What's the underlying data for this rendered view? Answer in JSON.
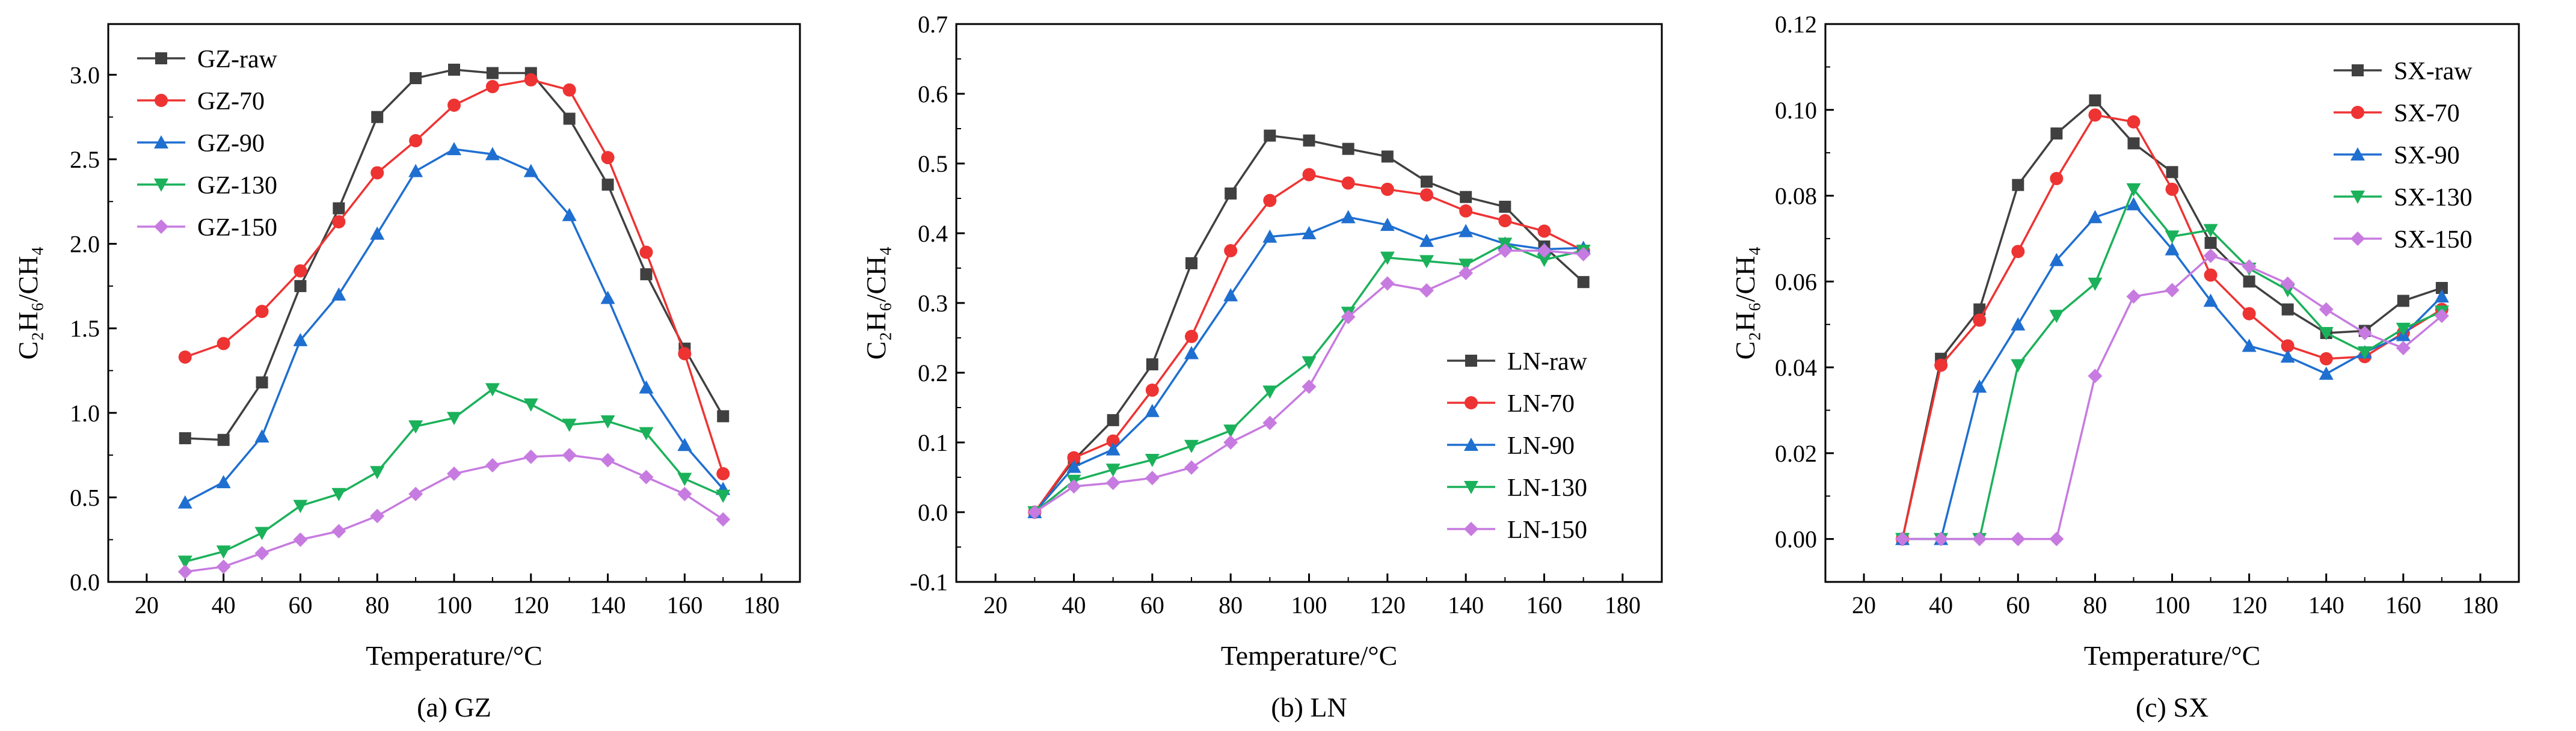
{
  "chart_data": [
    {
      "type": "line",
      "caption": "(a) GZ",
      "xlabel": "Temperature/°C",
      "ylabel": "C₂H₆/CH₄",
      "xlim": [
        10,
        190
      ],
      "ylim": [
        0,
        3.3
      ],
      "xticks": [
        20,
        40,
        60,
        80,
        100,
        120,
        140,
        160,
        180
      ],
      "yticks": [
        0.0,
        0.5,
        1.0,
        1.5,
        2.0,
        2.5,
        3.0
      ],
      "ytick_labels": [
        "0.0",
        "0.5",
        "1.0",
        "1.5",
        "2.0",
        "2.5",
        "3.0"
      ],
      "legend": "top-left",
      "x": [
        30,
        40,
        50,
        60,
        70,
        80,
        90,
        100,
        110,
        120,
        130,
        140,
        150,
        160,
        170
      ],
      "series": [
        {
          "name": "GZ-raw",
          "color": "#404040",
          "marker": "square",
          "values": [
            0.85,
            0.84,
            1.18,
            1.75,
            2.21,
            2.75,
            2.98,
            3.03,
            3.01,
            3.01,
            2.74,
            2.35,
            1.82,
            1.38,
            0.98
          ]
        },
        {
          "name": "GZ-70",
          "color": "#ee3333",
          "marker": "circle",
          "values": [
            1.33,
            1.41,
            1.6,
            1.84,
            2.13,
            2.42,
            2.61,
            2.82,
            2.93,
            2.97,
            2.91,
            2.51,
            1.95,
            1.35,
            0.64
          ]
        },
        {
          "name": "GZ-90",
          "color": "#1f6fd0",
          "marker": "triangle-up",
          "values": [
            0.47,
            0.59,
            0.86,
            1.43,
            1.7,
            2.06,
            2.43,
            2.56,
            2.53,
            2.43,
            2.17,
            1.68,
            1.15,
            0.81,
            0.55
          ]
        },
        {
          "name": "GZ-130",
          "color": "#1bb15a",
          "marker": "triangle-down",
          "values": [
            0.12,
            0.18,
            0.29,
            0.45,
            0.52,
            0.65,
            0.92,
            0.97,
            1.14,
            1.05,
            0.93,
            0.95,
            0.88,
            0.61,
            0.51
          ]
        },
        {
          "name": "GZ-150",
          "color": "#c77be0",
          "marker": "diamond",
          "values": [
            0.06,
            0.09,
            0.17,
            0.25,
            0.3,
            0.39,
            0.52,
            0.64,
            0.69,
            0.74,
            0.75,
            0.72,
            0.62,
            0.52,
            0.37
          ]
        }
      ]
    },
    {
      "type": "line",
      "caption": "(b) LN",
      "xlabel": "Temperature/°C",
      "ylabel": "C₂H₆/CH₄",
      "xlim": [
        10,
        190
      ],
      "ylim": [
        -0.1,
        0.7
      ],
      "xticks": [
        20,
        40,
        60,
        80,
        100,
        120,
        140,
        160,
        180
      ],
      "yticks": [
        -0.1,
        0.0,
        0.1,
        0.2,
        0.3,
        0.4,
        0.5,
        0.6,
        0.7
      ],
      "ytick_labels": [
        "-0.1",
        "0.0",
        "0.1",
        "0.2",
        "0.3",
        "0.4",
        "0.5",
        "0.6",
        "0.7"
      ],
      "legend": "bottom-right",
      "x": [
        30,
        40,
        50,
        60,
        70,
        80,
        90,
        100,
        110,
        120,
        130,
        140,
        150,
        160,
        170
      ],
      "series": [
        {
          "name": "LN-raw",
          "color": "#404040",
          "marker": "square",
          "values": [
            0.0,
            0.075,
            0.132,
            0.212,
            0.357,
            0.457,
            0.54,
            0.533,
            0.521,
            0.51,
            0.474,
            0.452,
            0.438,
            0.381,
            0.33
          ]
        },
        {
          "name": "LN-70",
          "color": "#ee3333",
          "marker": "circle",
          "values": [
            0.0,
            0.078,
            0.102,
            0.175,
            0.252,
            0.375,
            0.447,
            0.484,
            0.472,
            0.463,
            0.455,
            0.432,
            0.418,
            0.403,
            0.375
          ]
        },
        {
          "name": "LN-90",
          "color": "#1f6fd0",
          "marker": "triangle-up",
          "values": [
            0.0,
            0.065,
            0.09,
            0.145,
            0.228,
            0.311,
            0.395,
            0.4,
            0.423,
            0.412,
            0.389,
            0.403,
            0.385,
            0.377,
            0.379
          ]
        },
        {
          "name": "LN-130",
          "color": "#1bb15a",
          "marker": "triangle-down",
          "values": [
            0.0,
            0.045,
            0.061,
            0.075,
            0.095,
            0.117,
            0.173,
            0.215,
            0.286,
            0.365,
            0.36,
            0.355,
            0.385,
            0.362,
            0.375
          ]
        },
        {
          "name": "LN-150",
          "color": "#c77be0",
          "marker": "diamond",
          "values": [
            0.0,
            0.037,
            0.042,
            0.049,
            0.064,
            0.1,
            0.128,
            0.18,
            0.28,
            0.328,
            0.318,
            0.343,
            0.375,
            0.375,
            0.37
          ]
        }
      ]
    },
    {
      "type": "line",
      "caption": "(c) SX",
      "xlabel": "Temperature/°C",
      "ylabel": "C₂H₆/CH₄",
      "xlim": [
        10,
        190
      ],
      "ylim": [
        -0.01,
        0.12
      ],
      "xticks": [
        20,
        40,
        60,
        80,
        100,
        120,
        140,
        160,
        180
      ],
      "yticks": [
        0.0,
        0.02,
        0.04,
        0.06,
        0.08,
        0.1,
        0.12
      ],
      "ytick_labels": [
        "0.00",
        "0.02",
        "0.04",
        "0.06",
        "0.08",
        "0.10",
        "0.12"
      ],
      "legend": "top-right",
      "x": [
        30,
        40,
        50,
        60,
        70,
        80,
        90,
        100,
        110,
        120,
        130,
        140,
        150,
        160,
        170
      ],
      "series": [
        {
          "name": "SX-raw",
          "color": "#404040",
          "marker": "square",
          "values": [
            0.0,
            0.042,
            0.0535,
            0.0825,
            0.0945,
            0.1022,
            0.0922,
            0.0855,
            0.069,
            0.06,
            0.0535,
            0.048,
            0.0485,
            0.0555,
            0.0585
          ]
        },
        {
          "name": "SX-70",
          "color": "#ee3333",
          "marker": "circle",
          "values": [
            0.0,
            0.0405,
            0.051,
            0.067,
            0.084,
            0.0988,
            0.0972,
            0.0815,
            0.0615,
            0.0525,
            0.045,
            0.042,
            0.0425,
            0.048,
            0.0535
          ]
        },
        {
          "name": "SX-90",
          "color": "#1f6fd0",
          "marker": "triangle-up",
          "values": [
            0.0,
            0.0,
            0.0355,
            0.05,
            0.065,
            0.075,
            0.078,
            0.0675,
            0.0555,
            0.045,
            0.0425,
            0.0385,
            0.0435,
            0.0475,
            0.0565
          ]
        },
        {
          "name": "SX-130",
          "color": "#1bb15a",
          "marker": "triangle-down",
          "values": [
            0.0,
            0.0,
            0.0,
            0.0405,
            0.052,
            0.0595,
            0.0815,
            0.0705,
            0.072,
            0.063,
            0.058,
            0.048,
            0.0435,
            0.049,
            0.053
          ]
        },
        {
          "name": "SX-150",
          "color": "#c77be0",
          "marker": "diamond",
          "values": [
            0.0,
            0.0,
            0.0,
            0.0,
            0.0,
            0.038,
            0.0565,
            0.058,
            0.066,
            0.0635,
            0.0595,
            0.0535,
            0.048,
            0.0445,
            0.052
          ]
        }
      ]
    }
  ]
}
